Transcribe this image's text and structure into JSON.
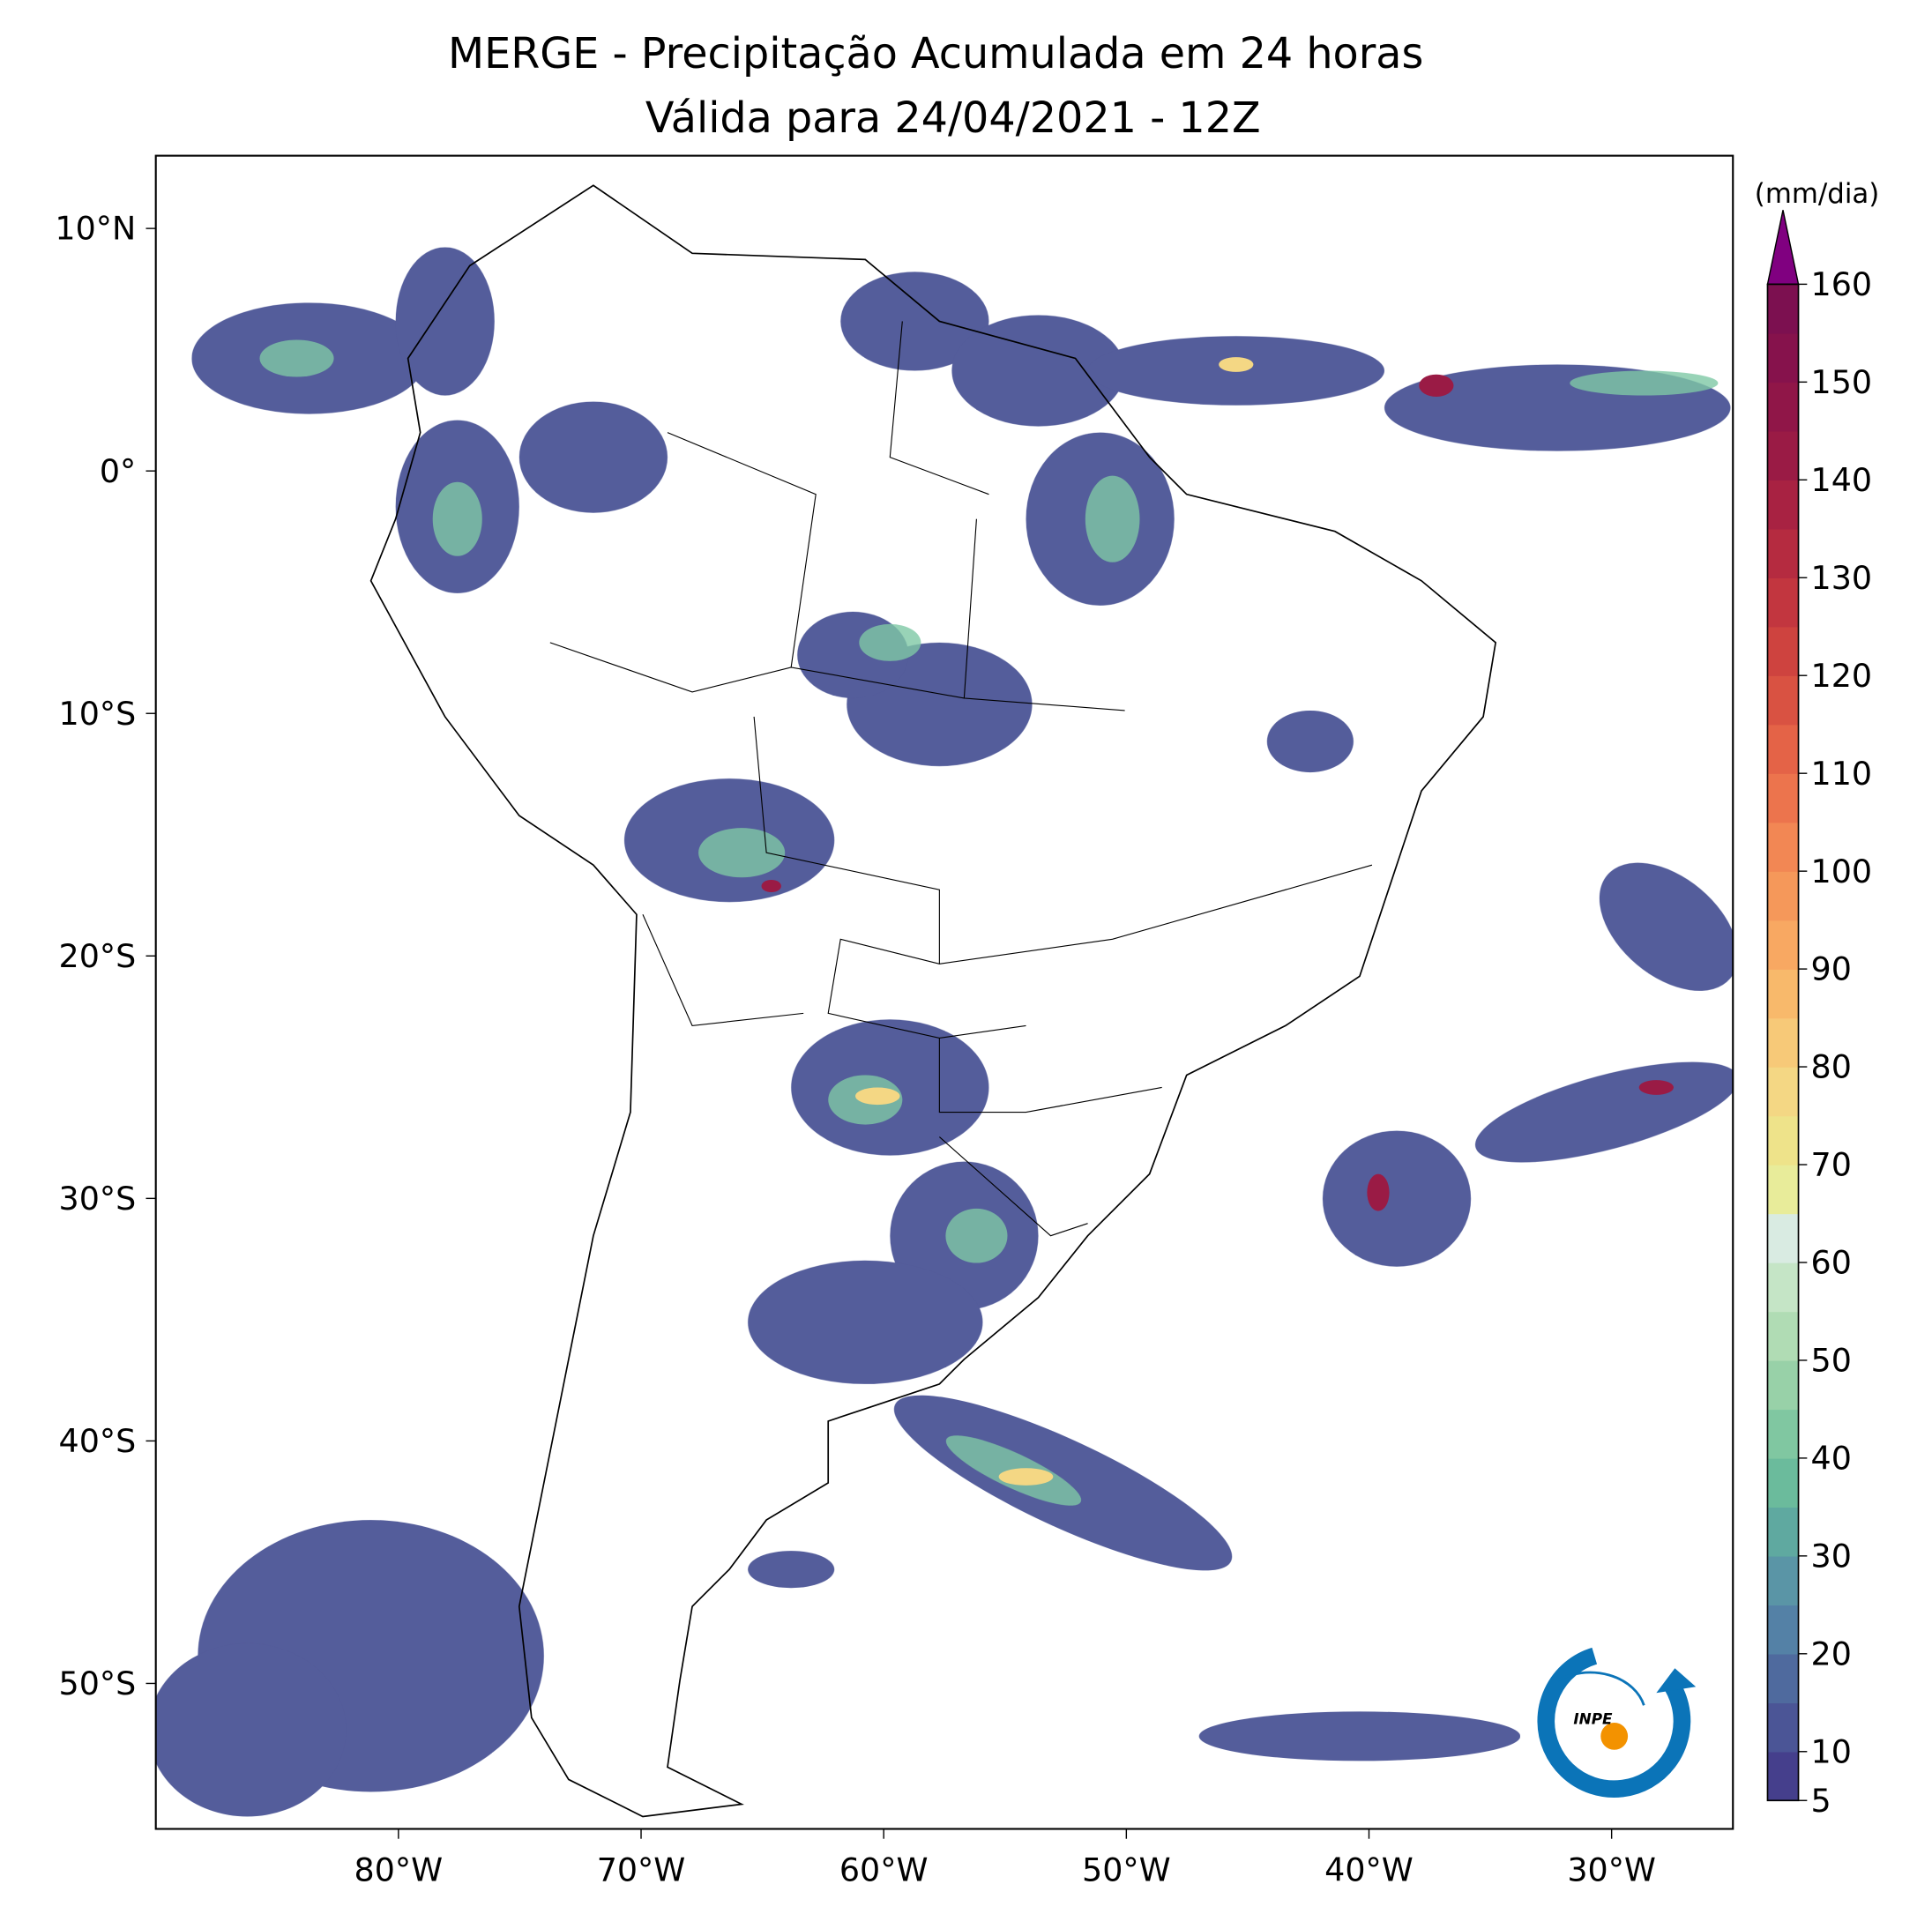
{
  "title": "MERGE - Precipitação Acumulada em 24 horas",
  "subtitle": "Válida para 24/04/2021 - 12Z",
  "map": {
    "xlim": [
      -90,
      -25
    ],
    "ylim": [
      -56,
      13
    ],
    "xticks": [
      {
        "value": -80,
        "label": "80°W"
      },
      {
        "value": -70,
        "label": "70°W"
      },
      {
        "value": -60,
        "label": "60°W"
      },
      {
        "value": -50,
        "label": "50°W"
      },
      {
        "value": -40,
        "label": "40°W"
      },
      {
        "value": -30,
        "label": "30°W"
      }
    ],
    "yticks": [
      {
        "value": 10,
        "label": "10°N"
      },
      {
        "value": 0,
        "label": "0°"
      },
      {
        "value": -10,
        "label": "10°S"
      },
      {
        "value": -20,
        "label": "20°S"
      },
      {
        "value": -30,
        "label": "30°S"
      },
      {
        "value": -40,
        "label": "40°S"
      },
      {
        "value": -50,
        "label": "50°S"
      }
    ]
  },
  "colorbar": {
    "label": "(mm/dia)",
    "lim": [
      5,
      160
    ],
    "ticks": [
      5,
      10,
      20,
      30,
      40,
      50,
      60,
      70,
      80,
      90,
      100,
      110,
      120,
      130,
      140,
      150,
      160
    ],
    "colors": [
      "#453f8c",
      "#4b5596",
      "#4f6a9e",
      "#5481a6",
      "#5a95a6",
      "#5fa9a0",
      "#6bbb9c",
      "#80c7a1",
      "#98d1a8",
      "#b0dcb4",
      "#c5e5c6",
      "#d9ebe2",
      "#e8ec9a",
      "#eee38a",
      "#f4d784",
      "#f7c978",
      "#f8b96b",
      "#f8a862",
      "#f5985a",
      "#f28754",
      "#ec744d",
      "#e46347",
      "#d95242",
      "#ce433f",
      "#c2363f",
      "#b52b40",
      "#a82242",
      "#9a1b45",
      "#901648",
      "#86124c",
      "#7c1050"
    ],
    "extend_color": "#800080"
  },
  "logo": "INPE"
}
